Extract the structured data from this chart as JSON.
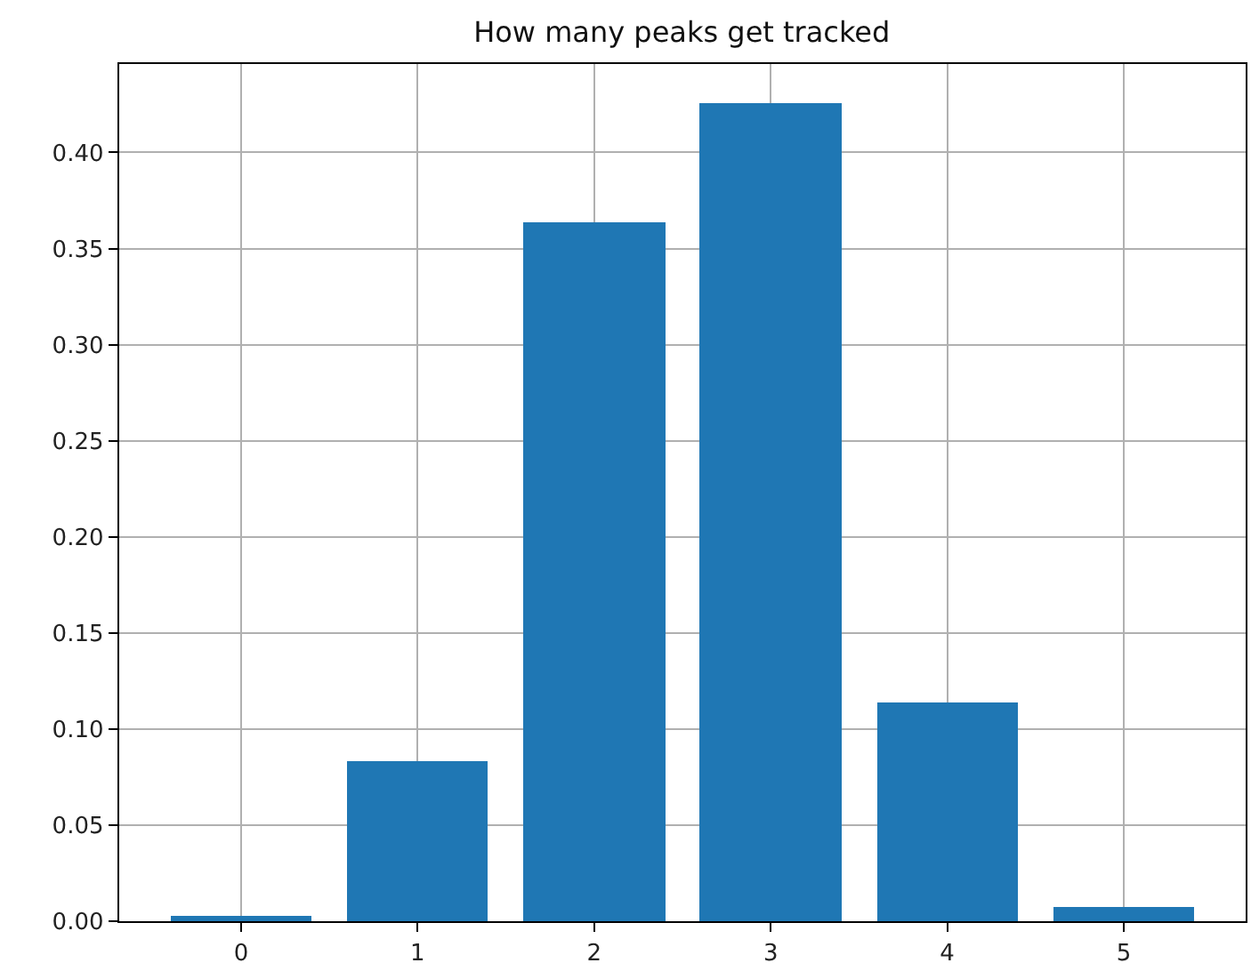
{
  "chart_data": {
    "type": "bar",
    "title": "How many peaks get tracked",
    "x": [
      0,
      1,
      2,
      3,
      4,
      5
    ],
    "values": [
      0.003,
      0.083,
      0.364,
      0.426,
      0.114,
      0.007
    ],
    "color": "#1f77b4",
    "xlim": [
      -0.69,
      5.69
    ],
    "xticks": [
      0,
      1,
      2,
      3,
      4,
      5
    ],
    "ylim": [
      0,
      0.446
    ],
    "yticks": [
      {
        "value": 0,
        "label": "0.00"
      },
      {
        "value": 0.05,
        "label": "0.05"
      },
      {
        "value": 0.1,
        "label": "0.10"
      },
      {
        "value": 0.15,
        "label": "0.15"
      },
      {
        "value": 0.2,
        "label": "0.20"
      },
      {
        "value": 0.25,
        "label": "0.25"
      },
      {
        "value": 0.3,
        "label": "0.30"
      },
      {
        "value": 0.35,
        "label": "0.35"
      },
      {
        "value": 0.4,
        "label": "0.40"
      }
    ],
    "grid": true
  }
}
